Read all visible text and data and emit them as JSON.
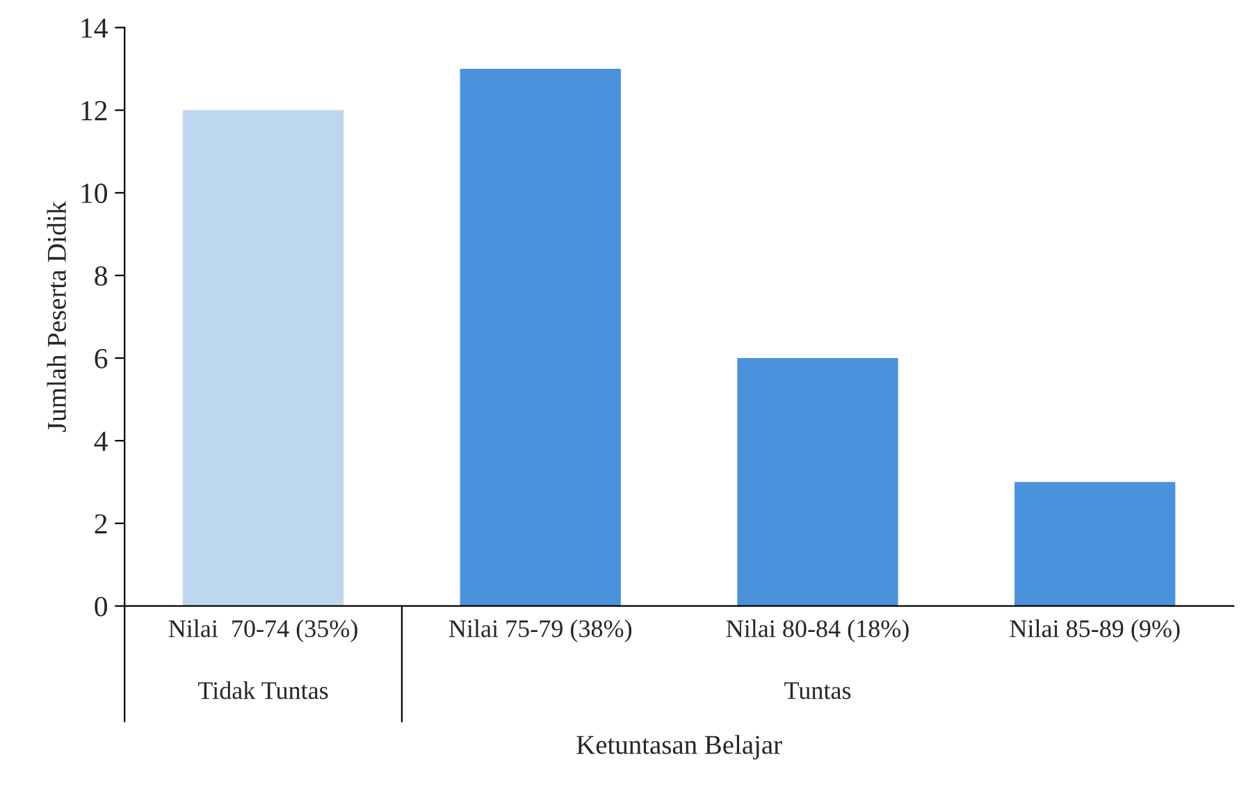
{
  "chart_data": {
    "type": "bar",
    "xlabel": "Ketuntasan Belajar",
    "ylabel": "Jumlah Peserta Didik",
    "categories": [
      "Nilai  70-74 (35%)",
      "Nilai 75-79 (38%)",
      "Nilai 80-84 (18%)",
      "Nilai 85-89 (9%)"
    ],
    "values": [
      12,
      13,
      6,
      3
    ],
    "colors": [
      "#bdd7ee",
      "#4a92dc",
      "#4a92dc",
      "#4a92dc"
    ],
    "ylim": [
      0,
      14
    ],
    "yticks": [
      0,
      2,
      4,
      6,
      8,
      10,
      12,
      14
    ],
    "grid": false,
    "legend": false,
    "annotations": [
      "Tidak Tuntas",
      "Tuntas"
    ]
  }
}
